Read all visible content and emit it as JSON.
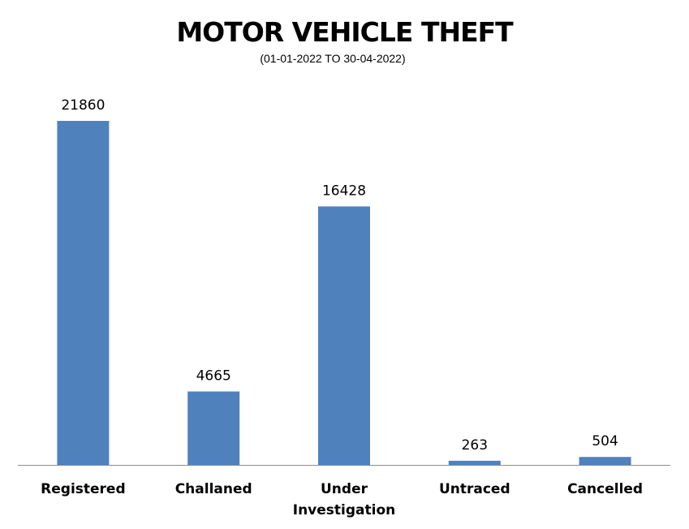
{
  "chart_data": {
    "type": "bar",
    "title": "MOTOR VEHICLE THEFT",
    "subtitle": "(01-01-2022 TO 30-04-2022)",
    "categories": [
      [
        "Registered"
      ],
      [
        "Challaned"
      ],
      [
        "Under",
        "Investigation"
      ],
      [
        "Untraced"
      ],
      [
        "Cancelled"
      ]
    ],
    "values": [
      21860,
      4665,
      16428,
      263,
      504
    ],
    "data_labels": [
      "21860",
      "4665",
      "16428",
      "263",
      "504"
    ],
    "ylim": [
      0,
      22000
    ],
    "grid": false,
    "legend": "none",
    "bar_color": "#4F81BD",
    "axis_color": "#8C8C8C"
  }
}
